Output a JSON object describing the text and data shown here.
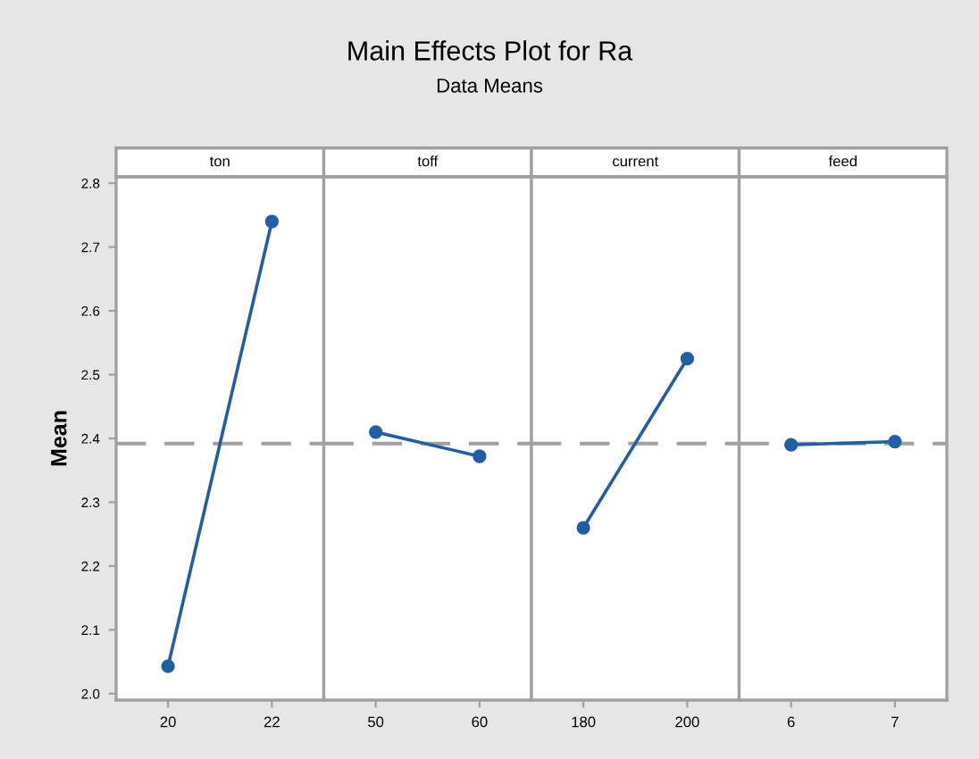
{
  "chart_data": [
    {
      "type": "line",
      "title": "ton",
      "annotations": [
        "Main Effects Plot for Ra",
        "Data Means"
      ],
      "ylabel": "Mean",
      "categories": [
        "20",
        "22"
      ],
      "series": [
        {
          "color": "#1f5fa8",
          "values": [
            2.043,
            2.74
          ]
        }
      ],
      "ylim": [
        1.99,
        2.81
      ],
      "yticks": [
        {
          "value": 2.0,
          "label": "2.0"
        },
        2.1,
        2.2,
        2.3,
        2.4,
        2.5,
        2.6,
        2.7,
        {
          "value": 2.8,
          "label": "2.8"
        }
      ],
      "ref_lines": [
        {
          "axis": "y",
          "value": 2.392,
          "color": "#a0a0a0",
          "line_style": "dashed"
        }
      ],
      "marker": "circle",
      "line_style": "solid",
      "grid": false
    },
    {
      "type": "line",
      "title": "toff",
      "categories": [
        "50",
        "60"
      ],
      "series": [
        {
          "color": "#1f5fa8",
          "values": [
            2.41,
            2.372
          ]
        }
      ],
      "ylim": [
        1.99,
        2.81
      ],
      "tick_labels": "x",
      "ref_lines": [
        {
          "axis": "y",
          "value": 2.392,
          "color": "#a0a0a0",
          "line_style": "dashed"
        }
      ],
      "marker": "circle",
      "line_style": "solid",
      "grid": false
    },
    {
      "type": "line",
      "title": "current",
      "categories": [
        "180",
        "200"
      ],
      "series": [
        {
          "color": "#1f5fa8",
          "values": [
            2.26,
            2.525
          ]
        }
      ],
      "ylim": [
        1.99,
        2.81
      ],
      "tick_labels": "x",
      "ref_lines": [
        {
          "axis": "y",
          "value": 2.392,
          "color": "#a0a0a0",
          "line_style": "dashed"
        }
      ],
      "marker": "circle",
      "line_style": "solid",
      "grid": false
    },
    {
      "type": "line",
      "title": "feed",
      "categories": [
        "6",
        "7"
      ],
      "series": [
        {
          "color": "#1f5fa8",
          "values": [
            2.39,
            2.395
          ]
        }
      ],
      "ylim": [
        1.99,
        2.81
      ],
      "tick_labels": "x",
      "ref_lines": [
        {
          "axis": "y",
          "value": 2.392,
          "color": "#a0a0a0",
          "line_style": "dashed"
        }
      ],
      "marker": "circle",
      "line_style": "solid",
      "grid": false
    }
  ]
}
